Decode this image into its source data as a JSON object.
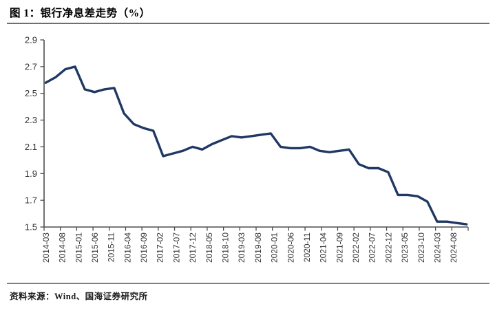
{
  "figure": {
    "title": "图 1：银行净息差走势（%）",
    "source": "资料来源：Wind、国海证券研究所"
  },
  "colors": {
    "line": "#1F3864",
    "axis": "#4d4d4d",
    "tick": "#4d4d4d",
    "tick_label": "#333333",
    "title_rule": "#6f6f6f",
    "footer_rule": "#7f7f7f"
  },
  "chart_data": {
    "type": "line",
    "title": "银行净息差走势（%）",
    "xlabel": "",
    "ylabel": "",
    "grid": false,
    "legend": false,
    "y_axis": {
      "min": 1.5,
      "max": 2.9,
      "step": 0.2,
      "tick_labels": [
        "2.9",
        "2.7",
        "2.5",
        "2.3",
        "2.1",
        "1.9",
        "1.7",
        "1.5"
      ]
    },
    "x_axis": {
      "unit": "month",
      "start": "2014-03",
      "end": "2024-12",
      "tick_interval_months": 5,
      "tick_labels": [
        "2014-03",
        "2014-08",
        "2015-01",
        "2015-06",
        "2015-11",
        "2016-04",
        "2016-09",
        "2017-02",
        "2017-07",
        "2017-12",
        "2018-05",
        "2018-10",
        "2019-03",
        "2019-08",
        "2020-01",
        "2020-06",
        "2020-11",
        "2021-04",
        "2021-09",
        "2022-02",
        "2022-07",
        "2022-12",
        "2023-05",
        "2023-10",
        "2024-03",
        "2024-08"
      ]
    },
    "series": [
      {
        "name": "银行净息差",
        "points": [
          {
            "date": "2014-03",
            "value": 2.58
          },
          {
            "date": "2014-06",
            "value": 2.62
          },
          {
            "date": "2014-09",
            "value": 2.68
          },
          {
            "date": "2014-12",
            "value": 2.7
          },
          {
            "date": "2015-03",
            "value": 2.53
          },
          {
            "date": "2015-06",
            "value": 2.51
          },
          {
            "date": "2015-09",
            "value": 2.53
          },
          {
            "date": "2015-12",
            "value": 2.54
          },
          {
            "date": "2016-03",
            "value": 2.35
          },
          {
            "date": "2016-06",
            "value": 2.27
          },
          {
            "date": "2016-09",
            "value": 2.24
          },
          {
            "date": "2016-12",
            "value": 2.22
          },
          {
            "date": "2017-03",
            "value": 2.03
          },
          {
            "date": "2017-06",
            "value": 2.05
          },
          {
            "date": "2017-09",
            "value": 2.07
          },
          {
            "date": "2017-12",
            "value": 2.1
          },
          {
            "date": "2018-03",
            "value": 2.08
          },
          {
            "date": "2018-06",
            "value": 2.12
          },
          {
            "date": "2018-09",
            "value": 2.15
          },
          {
            "date": "2018-12",
            "value": 2.18
          },
          {
            "date": "2019-03",
            "value": 2.17
          },
          {
            "date": "2019-06",
            "value": 2.18
          },
          {
            "date": "2019-09",
            "value": 2.19
          },
          {
            "date": "2019-12",
            "value": 2.2
          },
          {
            "date": "2020-03",
            "value": 2.1
          },
          {
            "date": "2020-06",
            "value": 2.09
          },
          {
            "date": "2020-09",
            "value": 2.09
          },
          {
            "date": "2020-12",
            "value": 2.1
          },
          {
            "date": "2021-03",
            "value": 2.07
          },
          {
            "date": "2021-06",
            "value": 2.06
          },
          {
            "date": "2021-09",
            "value": 2.07
          },
          {
            "date": "2021-12",
            "value": 2.08
          },
          {
            "date": "2022-03",
            "value": 1.97
          },
          {
            "date": "2022-06",
            "value": 1.94
          },
          {
            "date": "2022-09",
            "value": 1.94
          },
          {
            "date": "2022-12",
            "value": 1.91
          },
          {
            "date": "2023-03",
            "value": 1.74
          },
          {
            "date": "2023-06",
            "value": 1.74
          },
          {
            "date": "2023-09",
            "value": 1.73
          },
          {
            "date": "2023-12",
            "value": 1.69
          },
          {
            "date": "2024-03",
            "value": 1.54
          },
          {
            "date": "2024-06",
            "value": 1.54
          },
          {
            "date": "2024-09",
            "value": 1.53
          },
          {
            "date": "2024-12",
            "value": 1.52
          }
        ]
      }
    ]
  }
}
